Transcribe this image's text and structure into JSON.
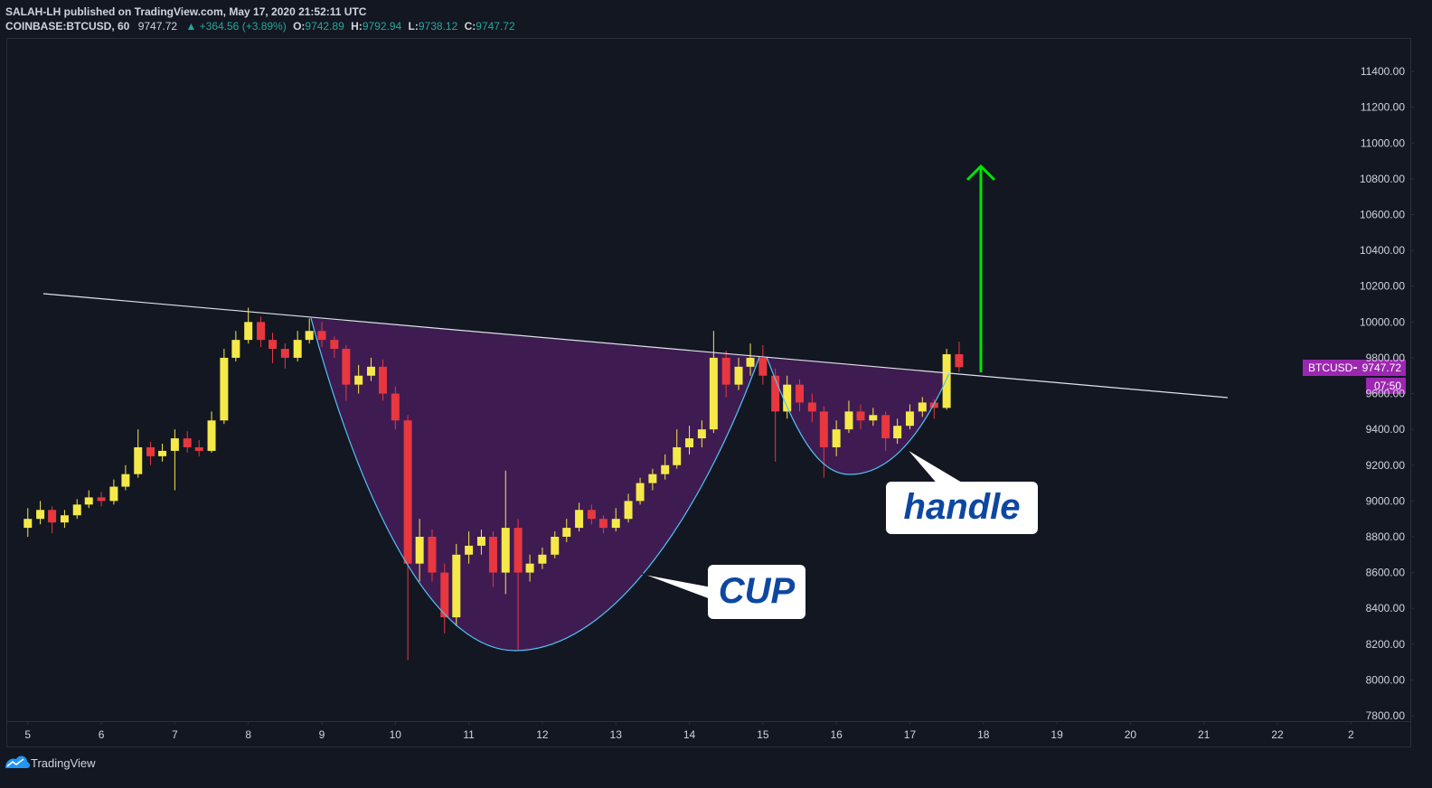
{
  "header": {
    "published": "SALAH-LH published on TradingView.com, May 17, 2020 21:52:11 UTC",
    "symbol": "COINBASE:BTCUSD, 60",
    "last": "9747.72",
    "change": "▲ +364.56 (+3.89%)",
    "ohlc": [
      {
        "label": "O:",
        "value": "9742.89"
      },
      {
        "label": "H:",
        "value": "9792.94"
      },
      {
        "label": "L:",
        "value": "9738.12"
      },
      {
        "label": "C:",
        "value": "9747.72"
      }
    ]
  },
  "price_tag": {
    "symbol": "BTCUSD",
    "price": "9747.72",
    "countdown": "07:50"
  },
  "annotations": {
    "cup": "CUP",
    "handle": "handle"
  },
  "footer": {
    "brand": "TradingView"
  },
  "chart_data": {
    "type": "candlestick",
    "up_color": "#f5e94a",
    "down_color": "#e8373f",
    "grid": false,
    "xlim": [
      4.72,
      23.07
    ],
    "ylim": [
      7770,
      11587
    ],
    "xticks": [
      5,
      6,
      7,
      8,
      9,
      10,
      11,
      12,
      13,
      14,
      15,
      16,
      17,
      18,
      19,
      20,
      21,
      22,
      {
        "value": 23,
        "label": "2"
      }
    ],
    "yticks": [
      {
        "value": 7800,
        "label": "7800.00"
      },
      {
        "value": 8000,
        "label": "8000.00"
      },
      {
        "value": 8200,
        "label": "8200.00"
      },
      {
        "value": 8400,
        "label": "8400.00"
      },
      {
        "value": 8600,
        "label": "8600.00"
      },
      {
        "value": 8800,
        "label": "8800.00"
      },
      {
        "value": 9000,
        "label": "9000.00"
      },
      {
        "value": 9200,
        "label": "9200.00"
      },
      {
        "value": 9400,
        "label": "9400.00"
      },
      {
        "value": 9600,
        "label": "9600.00"
      },
      {
        "value": 9800,
        "label": "9800.00"
      },
      {
        "value": 10000,
        "label": "10000.00"
      },
      {
        "value": 10200,
        "label": "10200.00"
      },
      {
        "value": 10400,
        "label": "10400.00"
      },
      {
        "value": 10600,
        "label": "10600.00"
      },
      {
        "value": 10800,
        "label": "10800.00"
      },
      {
        "value": 11000,
        "label": "11000.00"
      },
      {
        "value": 11200,
        "label": "11200.00"
      },
      {
        "value": 11400,
        "label": "11400.00"
      }
    ],
    "x": [
      5,
      5.17,
      5.33,
      5.5,
      5.67,
      5.83,
      6,
      6.17,
      6.33,
      6.5,
      6.67,
      6.83,
      7,
      7.17,
      7.33,
      7.5,
      7.67,
      7.83,
      8,
      8.17,
      8.33,
      8.5,
      8.67,
      8.83,
      9,
      9.17,
      9.33,
      9.5,
      9.67,
      9.83,
      10,
      10.17,
      10.33,
      10.5,
      10.67,
      10.83,
      11,
      11.17,
      11.33,
      11.5,
      11.67,
      11.83,
      12,
      12.17,
      12.33,
      12.5,
      12.67,
      12.83,
      13,
      13.17,
      13.33,
      13.5,
      13.67,
      13.83,
      14,
      14.17,
      14.33,
      14.5,
      14.67,
      14.83,
      15,
      15.17,
      15.33,
      15.5,
      15.67,
      15.83,
      16,
      16.17,
      16.33,
      16.5,
      16.67,
      16.83,
      17,
      17.17,
      17.33,
      17.5,
      17.67
    ],
    "candles": [
      [
        8850,
        8960,
        8800,
        8900
      ],
      [
        8900,
        9000,
        8870,
        8950
      ],
      [
        8950,
        8970,
        8820,
        8880
      ],
      [
        8880,
        8950,
        8850,
        8920
      ],
      [
        8920,
        9010,
        8900,
        8980
      ],
      [
        8980,
        9060,
        8960,
        9020
      ],
      [
        9020,
        9050,
        8970,
        9000
      ],
      [
        9000,
        9120,
        8980,
        9080
      ],
      [
        9080,
        9200,
        9060,
        9150
      ],
      [
        9150,
        9400,
        9130,
        9300
      ],
      [
        9300,
        9330,
        9200,
        9250
      ],
      [
        9250,
        9320,
        9220,
        9280
      ],
      [
        9280,
        9400,
        9060,
        9350
      ],
      [
        9350,
        9390,
        9270,
        9300
      ],
      [
        9300,
        9340,
        9250,
        9280
      ],
      [
        9280,
        9500,
        9270,
        9450
      ],
      [
        9450,
        9850,
        9430,
        9800
      ],
      [
        9800,
        9950,
        9780,
        9900
      ],
      [
        9900,
        10080,
        9880,
        10000
      ],
      [
        10000,
        10030,
        9860,
        9900
      ],
      [
        9900,
        9940,
        9770,
        9850
      ],
      [
        9850,
        9880,
        9740,
        9800
      ],
      [
        9800,
        9950,
        9780,
        9900
      ],
      [
        9900,
        10020,
        9880,
        9950
      ],
      [
        9950,
        10000,
        9860,
        9900
      ],
      [
        9900,
        9920,
        9800,
        9850
      ],
      [
        9850,
        9870,
        9560,
        9650
      ],
      [
        9650,
        9760,
        9600,
        9700
      ],
      [
        9700,
        9800,
        9670,
        9750
      ],
      [
        9750,
        9790,
        9560,
        9600
      ],
      [
        9600,
        9640,
        9400,
        9450
      ],
      [
        9450,
        9480,
        8110,
        8650
      ],
      [
        8650,
        8900,
        8550,
        8800
      ],
      [
        8800,
        8840,
        8550,
        8600
      ],
      [
        8600,
        8650,
        8260,
        8350
      ],
      [
        8350,
        8760,
        8300,
        8700
      ],
      [
        8700,
        8830,
        8650,
        8750
      ],
      [
        8750,
        8840,
        8700,
        8800
      ],
      [
        8800,
        8830,
        8520,
        8600
      ],
      [
        8600,
        9170,
        8480,
        8850
      ],
      [
        8850,
        8900,
        8170,
        8600
      ],
      [
        8600,
        8700,
        8550,
        8650
      ],
      [
        8650,
        8740,
        8620,
        8700
      ],
      [
        8700,
        8830,
        8680,
        8800
      ],
      [
        8800,
        8900,
        8770,
        8850
      ],
      [
        8850,
        8990,
        8830,
        8950
      ],
      [
        8950,
        8980,
        8870,
        8900
      ],
      [
        8900,
        8920,
        8820,
        8850
      ],
      [
        8850,
        8960,
        8830,
        8900
      ],
      [
        8900,
        9040,
        8880,
        9000
      ],
      [
        9000,
        9130,
        8980,
        9100
      ],
      [
        9100,
        9180,
        9060,
        9150
      ],
      [
        9150,
        9260,
        9120,
        9200
      ],
      [
        9200,
        9400,
        9180,
        9300
      ],
      [
        9300,
        9420,
        9260,
        9350
      ],
      [
        9350,
        9450,
        9300,
        9400
      ],
      [
        9400,
        9950,
        9380,
        9800
      ],
      [
        9800,
        9840,
        9580,
        9650
      ],
      [
        9650,
        9800,
        9620,
        9750
      ],
      [
        9750,
        9880,
        9700,
        9800
      ],
      [
        9800,
        9870,
        9650,
        9700
      ],
      [
        9700,
        9740,
        9220,
        9500
      ],
      [
        9500,
        9700,
        9460,
        9650
      ],
      [
        9650,
        9680,
        9500,
        9550
      ],
      [
        9550,
        9600,
        9440,
        9500
      ],
      [
        9500,
        9530,
        9130,
        9300
      ],
      [
        9300,
        9450,
        9250,
        9400
      ],
      [
        9400,
        9560,
        9380,
        9500
      ],
      [
        9500,
        9540,
        9400,
        9450
      ],
      [
        9450,
        9520,
        9420,
        9480
      ],
      [
        9480,
        9500,
        9280,
        9350
      ],
      [
        9350,
        9460,
        9320,
        9420
      ],
      [
        9420,
        9540,
        9400,
        9500
      ],
      [
        9500,
        9580,
        9470,
        9550
      ],
      [
        9550,
        9570,
        9460,
        9520
      ],
      [
        9520,
        9850,
        9510,
        9820
      ],
      [
        9820,
        9890,
        9720,
        9747.72
      ]
    ]
  }
}
